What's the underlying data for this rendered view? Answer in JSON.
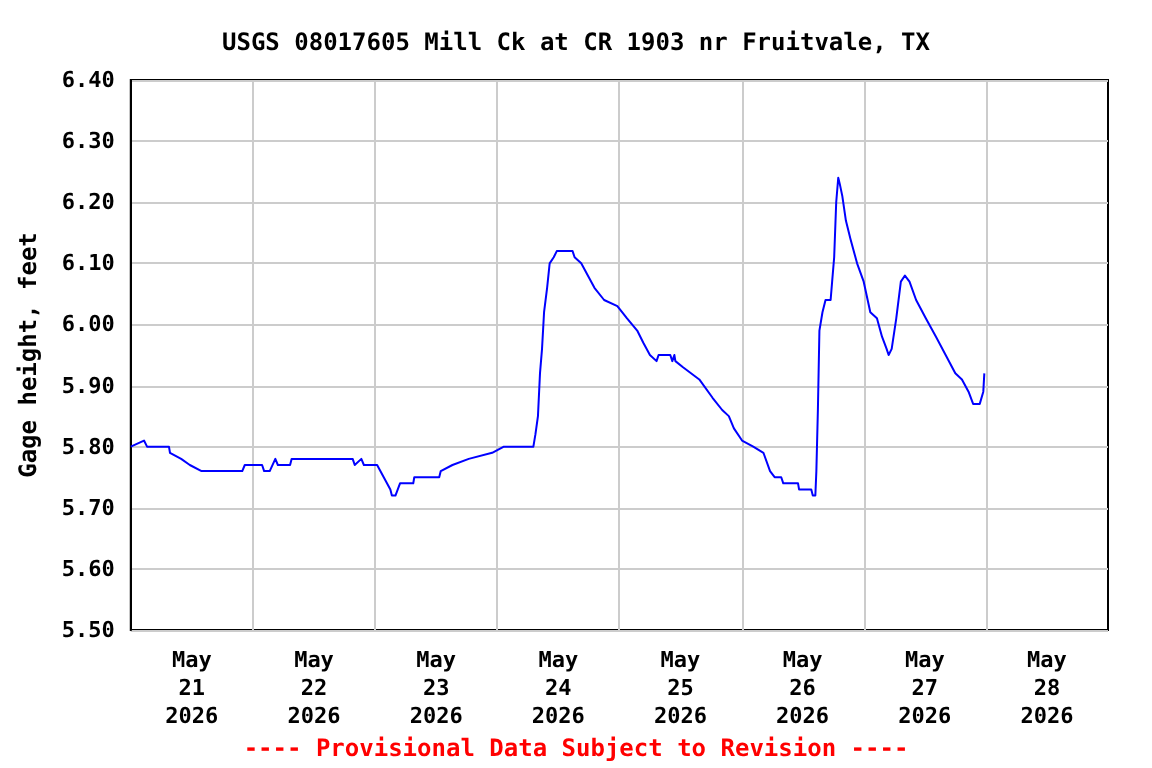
{
  "chart_data": {
    "type": "line",
    "title": "USGS 08017605 Mill Ck at CR 1903 nr Fruitvale, TX",
    "ylabel": "Gage height, feet",
    "annotations": [
      "---- Provisional Data Subject to Revision ----"
    ],
    "x": [
      "2026-05-21T00:00",
      "2026-05-21T02:36",
      "2026-05-21T03:12",
      "2026-05-21T07:30",
      "2026-05-21T07:42",
      "2026-05-21T09:54",
      "2026-05-21T11:36",
      "2026-05-21T13:54",
      "2026-05-21T21:54",
      "2026-05-21T22:24",
      "2026-05-22T01:48",
      "2026-05-22T02:12",
      "2026-05-22T03:18",
      "2026-05-22T04:24",
      "2026-05-22T04:54",
      "2026-05-22T07:18",
      "2026-05-22T07:36",
      "2026-05-22T19:36",
      "2026-05-22T20:00",
      "2026-05-22T21:18",
      "2026-05-22T21:48",
      "2026-05-23T00:24",
      "2026-05-23T01:42",
      "2026-05-23T03:00",
      "2026-05-23T03:18",
      "2026-05-23T04:00",
      "2026-05-23T04:54",
      "2026-05-23T07:30",
      "2026-05-23T07:42",
      "2026-05-23T12:36",
      "2026-05-23T12:54",
      "2026-05-23T15:12",
      "2026-05-23T18:24",
      "2026-05-23T23:00",
      "2026-05-24T01:18",
      "2026-05-24T07:06",
      "2026-05-24T07:30",
      "2026-05-24T08:00",
      "2026-05-24T08:24",
      "2026-05-24T08:48",
      "2026-05-24T09:12",
      "2026-05-24T09:48",
      "2026-05-24T10:18",
      "2026-05-24T11:06",
      "2026-05-24T11:42",
      "2026-05-24T14:48",
      "2026-05-24T15:12",
      "2026-05-24T16:30",
      "2026-05-24T17:48",
      "2026-05-24T19:06",
      "2026-05-24T21:00",
      "2026-05-24T23:36",
      "2026-05-25T01:30",
      "2026-05-25T03:30",
      "2026-05-25T04:42",
      "2026-05-25T06:00",
      "2026-05-25T07:18",
      "2026-05-25T07:42",
      "2026-05-25T10:00",
      "2026-05-25T10:24",
      "2026-05-25T10:48",
      "2026-05-25T11:00",
      "2026-05-25T12:30",
      "2026-05-25T15:42",
      "2026-05-25T18:18",
      "2026-05-25T20:12",
      "2026-05-25T21:30",
      "2026-05-25T22:30",
      "2026-05-26T00:06",
      "2026-05-26T02:18",
      "2026-05-26T04:18",
      "2026-05-26T05:36",
      "2026-05-26T06:30",
      "2026-05-26T07:48",
      "2026-05-26T08:12",
      "2026-05-26T11:06",
      "2026-05-26T11:18",
      "2026-05-26T13:42",
      "2026-05-26T14:00",
      "2026-05-26T14:30",
      "2026-05-26T14:42",
      "2026-05-26T15:00",
      "2026-05-26T15:18",
      "2026-05-26T15:54",
      "2026-05-26T16:30",
      "2026-05-26T17:30",
      "2026-05-26T17:48",
      "2026-05-26T18:12",
      "2026-05-26T18:36",
      "2026-05-26T19:00",
      "2026-05-26T19:18",
      "2026-05-26T19:48",
      "2026-05-26T20:30",
      "2026-05-26T21:24",
      "2026-05-26T22:42",
      "2026-05-27T00:00",
      "2026-05-27T01:18",
      "2026-05-27T02:36",
      "2026-05-27T03:36",
      "2026-05-27T04:30",
      "2026-05-27T04:54",
      "2026-05-27T05:30",
      "2026-05-27T06:24",
      "2026-05-27T07:18",
      "2026-05-27T08:06",
      "2026-05-27T09:00",
      "2026-05-27T10:18",
      "2026-05-27T12:12",
      "2026-05-27T14:12",
      "2026-05-27T16:06",
      "2026-05-27T18:00",
      "2026-05-27T19:18",
      "2026-05-27T20:36",
      "2026-05-27T21:30",
      "2026-05-27T22:48",
      "2026-05-27T23:30",
      "2026-05-27T23:42"
    ],
    "series": [
      {
        "color": "#0000ff",
        "values": [
          5.8,
          5.81,
          5.8,
          5.8,
          5.79,
          5.78,
          5.77,
          5.76,
          5.76,
          5.77,
          5.77,
          5.76,
          5.76,
          5.78,
          5.77,
          5.77,
          5.78,
          5.78,
          5.77,
          5.78,
          5.77,
          5.77,
          5.75,
          5.73,
          5.72,
          5.72,
          5.74,
          5.74,
          5.75,
          5.75,
          5.76,
          5.77,
          5.78,
          5.79,
          5.8,
          5.8,
          5.82,
          5.85,
          5.92,
          5.96,
          6.02,
          6.06,
          6.1,
          6.11,
          6.12,
          6.12,
          6.11,
          6.1,
          6.08,
          6.06,
          6.04,
          6.03,
          6.01,
          5.99,
          5.97,
          5.95,
          5.94,
          5.95,
          5.95,
          5.94,
          5.95,
          5.94,
          5.93,
          5.91,
          5.88,
          5.86,
          5.85,
          5.83,
          5.81,
          5.8,
          5.79,
          5.76,
          5.75,
          5.75,
          5.74,
          5.74,
          5.73,
          5.73,
          5.72,
          5.72,
          5.76,
          5.86,
          5.99,
          6.02,
          6.04,
          6.04,
          6.07,
          6.11,
          6.2,
          6.24,
          6.23,
          6.21,
          6.17,
          6.14,
          6.1,
          6.07,
          6.02,
          6.01,
          5.98,
          5.96,
          5.95,
          5.96,
          6.01,
          6.07,
          6.08,
          6.07,
          6.04,
          6.01,
          5.98,
          5.95,
          5.92,
          5.91,
          5.89,
          5.87,
          5.87,
          5.89,
          5.92
        ]
      }
    ],
    "xlim": [
      "2026-05-21",
      "2026-05-29"
    ],
    "xticks": [
      {
        "value": "2026-05-21T12:00",
        "label": "May\n21\n2026"
      },
      {
        "value": "2026-05-22T12:00",
        "label": "May\n22\n2026"
      },
      {
        "value": "2026-05-23T12:00",
        "label": "May\n23\n2026"
      },
      {
        "value": "2026-05-24T12:00",
        "label": "May\n24\n2026"
      },
      {
        "value": "2026-05-25T12:00",
        "label": "May\n25\n2026"
      },
      {
        "value": "2026-05-26T12:00",
        "label": "May\n26\n2026"
      },
      {
        "value": "2026-05-27T12:00",
        "label": "May\n27\n2026"
      },
      {
        "value": "2026-05-28T12:00",
        "label": "May\n28\n2026"
      },
      {
        "value": "2026-05-22",
        "label": null
      },
      {
        "value": "2026-05-23",
        "label": null
      },
      {
        "value": "2026-05-24",
        "label": null
      },
      {
        "value": "2026-05-25",
        "label": null
      },
      {
        "value": "2026-05-26",
        "label": null
      },
      {
        "value": "2026-05-27",
        "label": null
      },
      {
        "value": "2026-05-28",
        "label": null
      }
    ],
    "ylim": [
      5.5,
      6.4
    ],
    "yticks": [
      {
        "value": 5.5,
        "label": "5.50"
      },
      {
        "value": 5.6,
        "label": "5.60"
      },
      {
        "value": 5.7,
        "label": "5.70"
      },
      {
        "value": 5.8,
        "label": "5.80"
      },
      {
        "value": 5.9,
        "label": "5.90"
      },
      {
        "value": 6.0,
        "label": "6.00"
      },
      {
        "value": 6.1,
        "label": "6.10"
      },
      {
        "value": 6.2,
        "label": "6.20"
      },
      {
        "value": 6.3,
        "label": "6.30"
      },
      {
        "value": 6.4,
        "label": "6.40"
      }
    ],
    "grid": true,
    "marker": "none",
    "line_style": "solid"
  }
}
